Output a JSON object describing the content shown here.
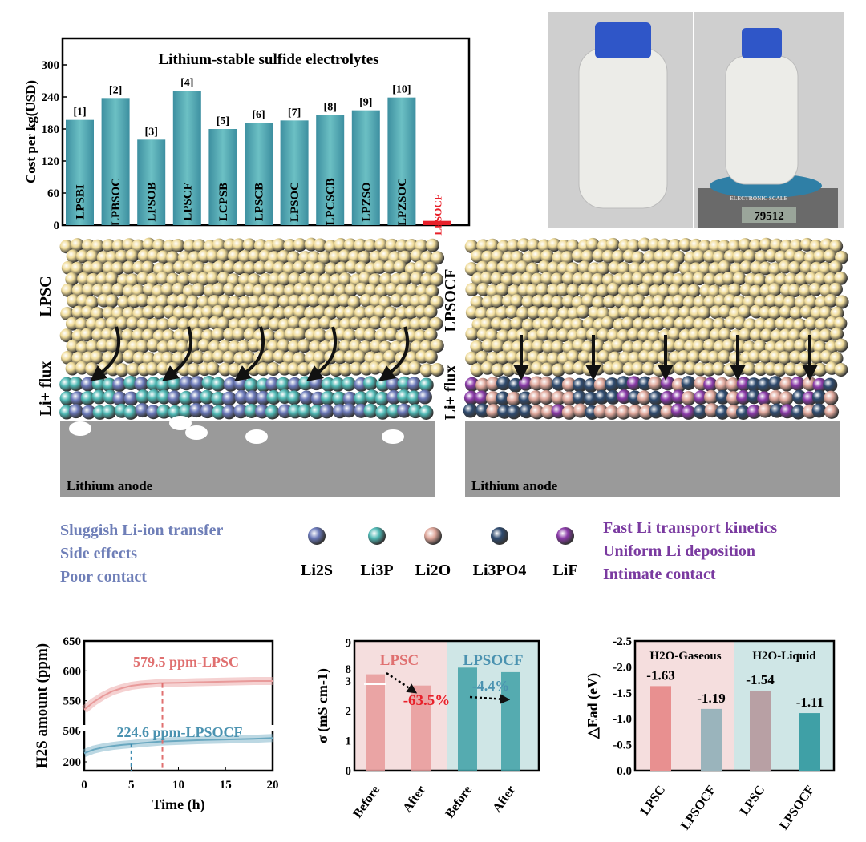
{
  "colors": {
    "teal": "#3f9aa5",
    "red": "#e8202a",
    "pink": "#e89a9a",
    "li2s": "#6a78b8",
    "li3p": "#4fb8b4",
    "li2o": "#e0a89c",
    "li3po4": "#2e4a6e",
    "lif": "#8a3aa8",
    "lpsc_bg": "#f5dede",
    "lpsocf_bg": "#cfe6e6",
    "text_blue": "#6f7fb8",
    "text_purple": "#7a3aa0",
    "anode": "#9a9a9a",
    "particle": "#f0dc9a"
  },
  "chart_data": [
    {
      "type": "bar",
      "title": "Lithium-stable sulfide electrolytes",
      "ylabel": "Cost per kg(USD)",
      "ylim": [
        0,
        340
      ],
      "yticks": [
        0,
        60,
        120,
        180,
        240,
        300
      ],
      "categories": [
        "LPSBI",
        "LPBSOC",
        "LPSOB",
        "LPSCF",
        "LCPSB",
        "LPSCB",
        "LPSOC",
        "LPCSCB",
        "LPZSO",
        "LPZSOC",
        "LPSOCF"
      ],
      "refs": [
        "[1]",
        "[2]",
        "[3]",
        "[4]",
        "[5]",
        "[6]",
        "[7]",
        "[8]",
        "[9]",
        "[10]",
        ""
      ],
      "values": [
        197,
        238,
        160,
        252,
        180,
        192,
        196,
        206,
        215,
        239,
        8
      ]
    },
    {
      "type": "line",
      "xlabel": "Time (h)",
      "ylabel": "H2S amount (ppm)",
      "xlim": [
        0,
        20
      ],
      "xticks": [
        0,
        5,
        10,
        15,
        20
      ],
      "yticks": [
        200,
        500,
        550,
        600,
        650
      ],
      "axis_break": [
        250,
        480
      ],
      "annotations": [
        "579.5 ppm-LPSC",
        "224.6 ppm-LPSOCF"
      ],
      "series": [
        {
          "name": "LPSC",
          "x": [
            0,
            1,
            2,
            3,
            4,
            5,
            6,
            8,
            10,
            12,
            15,
            18,
            20
          ],
          "y": [
            535,
            548,
            558,
            566,
            571,
            575,
            577,
            579.5,
            580,
            581,
            582,
            583,
            583
          ]
        },
        {
          "name": "LPSOCF",
          "x": [
            0,
            1,
            2,
            3,
            4,
            5,
            6,
            8,
            10,
            12,
            15,
            18,
            20
          ],
          "y": [
            212,
            217,
            220,
            222,
            223.5,
            224.6,
            226,
            228,
            229,
            230,
            231,
            232,
            233
          ]
        }
      ]
    },
    {
      "type": "bar",
      "ylabel": "σ (mS cm-1)",
      "ylim": [
        0,
        9
      ],
      "yticks": [
        0,
        1,
        2,
        3,
        8,
        9
      ],
      "axis_break": [
        3.6,
        7.4
      ],
      "groups": [
        "LPSC",
        "LPSOCF"
      ],
      "categories": [
        "Before",
        "After",
        "Before",
        "After"
      ],
      "values": [
        7.8,
        2.85,
        3.45,
        3.3
      ],
      "annotations": [
        "-63.5%",
        "-4.4%"
      ]
    },
    {
      "type": "bar",
      "ylabel": "△Ead (eV)",
      "ylim": [
        0,
        -2.5
      ],
      "yticks": [
        "0.0",
        "-0.5",
        "-1.0",
        "-1.5",
        "-2.0",
        "-2.5"
      ],
      "groups": [
        "H2O-Gaseous",
        "H2O-Liquid"
      ],
      "categories": [
        "LPSC",
        "LPSOCF",
        "LPSC",
        "LPSOCF"
      ],
      "values": [
        -1.63,
        -1.19,
        -1.54,
        -1.11
      ],
      "labels": [
        "-1.63",
        "-1.19",
        "-1.54",
        "-1.11"
      ]
    }
  ],
  "photo": {
    "scale_readout": "79512",
    "scale_brand": "ELECTRONIC SCALE"
  },
  "schematic": {
    "left_label": "LPSC",
    "right_label": "LPSOCF",
    "flux": "Li+ flux",
    "anode": "Lithium anode"
  },
  "legend": {
    "left": [
      "Sluggish Li-ion transfer",
      "Side effects",
      "Poor contact"
    ],
    "right": [
      "Fast Li transport kinetics",
      "Uniform Li deposition",
      "Intimate contact"
    ],
    "species": [
      "Li2S",
      "Li3P",
      "Li2O",
      "Li3PO4",
      "LiF"
    ]
  }
}
